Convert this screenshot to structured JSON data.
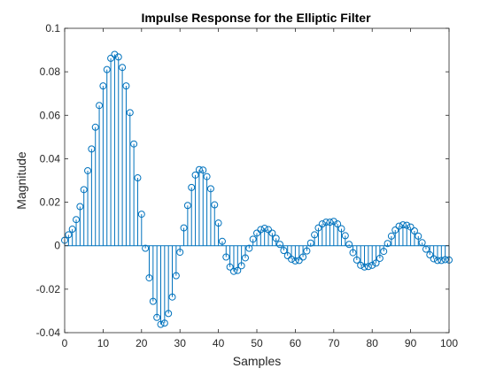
{
  "colors": {
    "series": "#0072bd",
    "axis": "#262626",
    "background": "#ffffff"
  },
  "chart_data": {
    "type": "stem",
    "title": "Impulse Response for the Elliptic Filter",
    "xlabel": "Samples",
    "ylabel": "Magnitude",
    "xlim": [
      0,
      100
    ],
    "ylim": [
      -0.04,
      0.1
    ],
    "xticks": [
      0,
      10,
      20,
      30,
      40,
      50,
      60,
      70,
      80,
      90,
      100
    ],
    "yticks": [
      -0.04,
      -0.02,
      0,
      0.02,
      0.04,
      0.06,
      0.08,
      0.1
    ],
    "xtick_labels": [
      "0",
      "10",
      "20",
      "30",
      "40",
      "50",
      "60",
      "70",
      "80",
      "90",
      "100"
    ],
    "ytick_labels": [
      "-0.04",
      "-0.02",
      "0",
      "0.02",
      "0.04",
      "0.06",
      "0.08",
      "0.1"
    ],
    "grid": false,
    "box": true,
    "marker": "open-circle",
    "series": [
      {
        "x": [
          0,
          1,
          2,
          3,
          4,
          5,
          6,
          7,
          8,
          9,
          10,
          11,
          12,
          13,
          14,
          15,
          16,
          17,
          18,
          19,
          20,
          21,
          22,
          23,
          24,
          25,
          26,
          27,
          28,
          29,
          30,
          31,
          32,
          33,
          34,
          35,
          36,
          37,
          38,
          39,
          40,
          41,
          42,
          43,
          44,
          45,
          46,
          47,
          48,
          49,
          50,
          51,
          52,
          53,
          54,
          55,
          56,
          57,
          58,
          59,
          60,
          61,
          62,
          63,
          64,
          65,
          66,
          67,
          68,
          69,
          70,
          71,
          72,
          73,
          74,
          75,
          76,
          77,
          78,
          79,
          80,
          81,
          82,
          83,
          84,
          85,
          86,
          87,
          88,
          89,
          90,
          91,
          92,
          93,
          94,
          95,
          96,
          97,
          98,
          99,
          100
        ],
        "y": [
          0.0025,
          0.005,
          0.0076,
          0.012,
          0.018,
          0.0258,
          0.0345,
          0.0445,
          0.0545,
          0.0645,
          0.0735,
          0.081,
          0.0862,
          0.088,
          0.0868,
          0.082,
          0.0735,
          0.0612,
          0.0468,
          0.0312,
          0.0145,
          -0.0012,
          -0.0148,
          -0.0256,
          -0.033,
          -0.0362,
          -0.0356,
          -0.0312,
          -0.0236,
          -0.0138,
          -0.003,
          0.0082,
          0.0185,
          0.0268,
          0.0325,
          0.035,
          0.0348,
          0.0318,
          0.0262,
          0.0188,
          0.0104,
          0.002,
          -0.0052,
          -0.0098,
          -0.0118,
          -0.0114,
          -0.0092,
          -0.0056,
          -0.0012,
          0.003,
          0.0058,
          0.0074,
          0.008,
          0.0074,
          0.0058,
          0.0034,
          0.0006,
          -0.0022,
          -0.0046,
          -0.0062,
          -0.007,
          -0.0068,
          -0.0052,
          -0.0024,
          0.0012,
          0.005,
          0.0082,
          0.01,
          0.0108,
          0.0108,
          0.0112,
          0.01,
          0.0078,
          0.0046,
          0.0006,
          -0.0032,
          -0.0066,
          -0.009,
          -0.0098,
          -0.0096,
          -0.009,
          -0.008,
          -0.0058,
          -0.0026,
          0.001,
          0.0044,
          0.0072,
          0.009,
          0.0096,
          0.0094,
          0.0086,
          0.0068,
          0.0044,
          0.0014,
          -0.0016,
          -0.0042,
          -0.006,
          -0.0068,
          -0.0068,
          -0.0064,
          -0.0066
        ]
      }
    ]
  }
}
